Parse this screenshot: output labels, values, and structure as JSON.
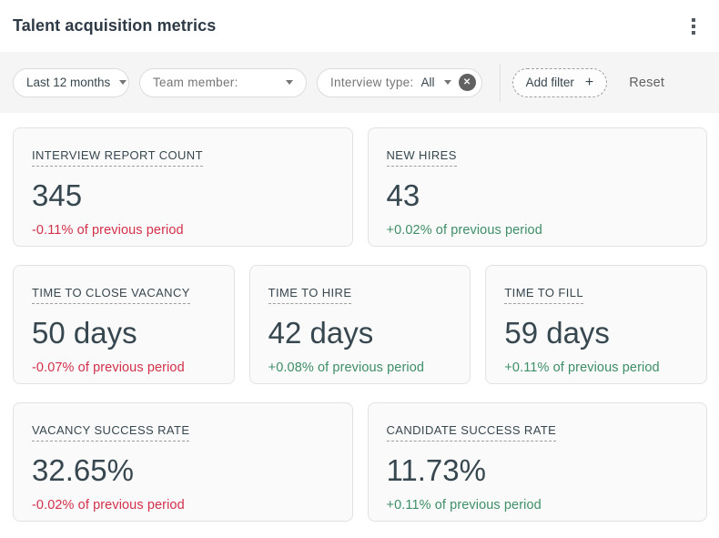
{
  "header": {
    "title": "Talent acquisition metrics",
    "menu_icon": "kebab-menu-icon"
  },
  "filters": {
    "period": {
      "value": "Last 12 months",
      "icon": "chevron-down-icon"
    },
    "team_member": {
      "label": "Team member:",
      "icon": "chevron-down-icon"
    },
    "interview_type": {
      "label": "Interview type:",
      "value": "All",
      "icon": "chevron-down-icon",
      "clear_icon": "clear-x-icon",
      "clear_glyph": "✕"
    },
    "add_filter": {
      "label": "Add filter",
      "icon": "plus-icon",
      "plus_glyph": "+"
    },
    "reset_label": "Reset"
  },
  "colors": {
    "negative": "#d3304a",
    "positive": "#3e8e68",
    "filter_bar_bg": "#f5f5f5",
    "card_bg": "#fafafa",
    "card_border": "#e2e2e2",
    "title_text": "#2e3a46"
  },
  "metrics": [
    {
      "title": "INTERVIEW REPORT COUNT",
      "value": "345",
      "delta": "-0.11% of previous period",
      "trend": "negative"
    },
    {
      "title": "NEW HIRES",
      "value": "43",
      "delta": "+0.02% of previous period",
      "trend": "positive"
    },
    {
      "title": "TIME TO CLOSE VACANCY",
      "value": "50 days",
      "delta": "-0.07% of previous period",
      "trend": "negative"
    },
    {
      "title": "TIME TO HIRE",
      "value": "42 days",
      "delta": "+0.08% of previous period",
      "trend": "positive"
    },
    {
      "title": "TIME TO FILL",
      "value": "59 days",
      "delta": "+0.11% of previous period",
      "trend": "positive"
    },
    {
      "title": "VACANCY SUCCESS RATE",
      "value": "32.65%",
      "delta": "-0.02% of previous period",
      "trend": "negative"
    },
    {
      "title": "CANDIDATE SUCCESS RATE",
      "value": "11.73%",
      "delta": "+0.11% of previous period",
      "trend": "positive"
    }
  ]
}
